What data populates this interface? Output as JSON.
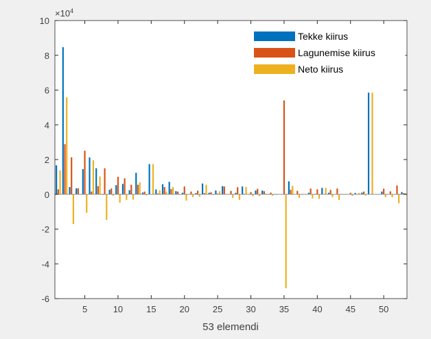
{
  "chart_data": {
    "type": "bar",
    "title": "",
    "xlabel": "53 elemendi",
    "ylabel": "",
    "y_exponent_label": "×10",
    "y_exponent_power": "4",
    "xlim": [
      0.5,
      53.5
    ],
    "ylim": [
      -6,
      10
    ],
    "xticks": [
      5,
      10,
      15,
      20,
      25,
      30,
      35,
      40,
      45,
      50
    ],
    "yticks": [
      -6,
      -4,
      -2,
      0,
      2,
      4,
      6,
      8,
      10
    ],
    "legend_position": "top-right",
    "grid": false,
    "units_note": "values in units of 1e4",
    "series": [
      {
        "name": "Tekke kiirus",
        "color": "#0072bd",
        "values": [
          1.67,
          8.47,
          0.42,
          0.34,
          1.45,
          2.12,
          1.5,
          0.03,
          0.26,
          0.53,
          0.6,
          0.24,
          1.24,
          0.1,
          1.74,
          0.28,
          0.58,
          0.72,
          0.18,
          0.09,
          0,
          0.07,
          0.62,
          0.09,
          0.22,
          0.47,
          0,
          0.09,
          0.45,
          0.02,
          0.22,
          0.22,
          0.02,
          0.02,
          0,
          0.75,
          0,
          0.02,
          0.09,
          0.03,
          0.37,
          0.09,
          0,
          0.02,
          0,
          0.08,
          0.1,
          5.85,
          0,
          0.16,
          0,
          0,
          0.13
        ]
      },
      {
        "name": "Lagunemise kiirus",
        "color": "#d95319",
        "values": [
          0.29,
          2.89,
          2.13,
          0.35,
          2.51,
          0.16,
          0.47,
          1.5,
          0.34,
          1.01,
          0.92,
          0.55,
          0.55,
          0.16,
          0,
          0.05,
          0.42,
          0.3,
          0.16,
          0.45,
          0.16,
          0.21,
          0.07,
          0.12,
          0.04,
          0.45,
          0.2,
          0.41,
          0.03,
          0.13,
          0.32,
          0.18,
          0.1,
          0.02,
          5.4,
          0.26,
          0.2,
          0,
          0.33,
          0.29,
          0,
          0.25,
          0.33,
          0,
          0.09,
          0,
          0.16,
          0,
          0,
          0.32,
          0.17,
          0.51,
          0.07
        ]
      },
      {
        "name": "Neto kiirus",
        "color": "#edb120",
        "values": [
          1.38,
          5.58,
          -1.71,
          -0.01,
          -1.06,
          1.96,
          1.03,
          -1.47,
          -0.08,
          -0.48,
          -0.32,
          -0.31,
          0.69,
          -0.06,
          1.74,
          0.23,
          0.16,
          0.42,
          0.02,
          -0.36,
          -0.16,
          -0.14,
          0.55,
          -0.03,
          0.18,
          0.02,
          -0.2,
          -0.32,
          0.42,
          -0.11,
          -0.1,
          0.04,
          -0.08,
          0,
          -5.4,
          0.49,
          -0.2,
          0.02,
          -0.24,
          -0.26,
          0.37,
          -0.16,
          -0.33,
          0.02,
          -0.09,
          0.08,
          -0.06,
          5.85,
          0,
          -0.16,
          -0.17,
          -0.51,
          0.06
        ]
      }
    ]
  }
}
